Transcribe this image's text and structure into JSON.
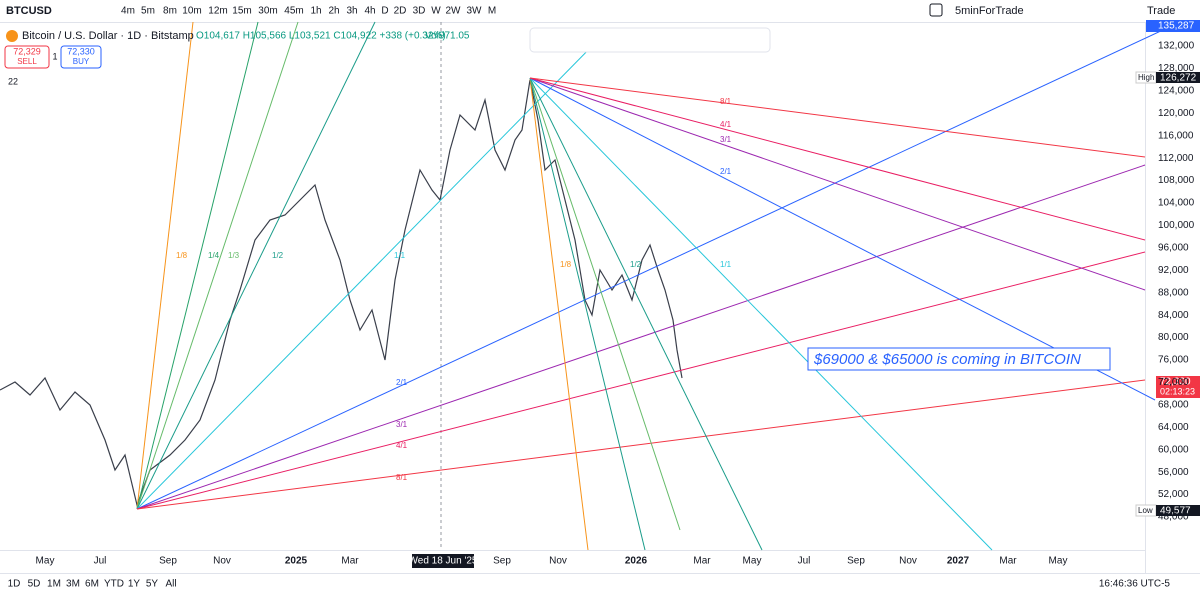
{
  "toolbar": {
    "symbol": "BTCUSD",
    "intervals": [
      "4m",
      "5m",
      "8m",
      "10m",
      "12m",
      "15m",
      "30m",
      "45m",
      "1h",
      "2h",
      "3h",
      "4h",
      "D",
      "2D",
      "3D",
      "W",
      "2W",
      "3W",
      "M"
    ],
    "layout_name": "5minForTrade",
    "trade": "Trade"
  },
  "legend": {
    "title": "Bitcoin / U.S. Dollar · 1D · Bitstamp",
    "ohlc": "O104,617 H105,566 L103,521 C104,922 +338 (+0.32%)",
    "volume": "Vol971.05",
    "sell_price": "72,329",
    "sell": "SELL",
    "spread": "1",
    "buy_price": "72,330",
    "buy": "BUY",
    "indicators_count": "22"
  },
  "price_axis": {
    "top_label": "135,287",
    "labels": [
      "132,000",
      "128,000",
      "124,000",
      "120,000",
      "116,000",
      "112,000",
      "108,000",
      "104,000",
      "100,000",
      "96,000",
      "92,000",
      "88,000",
      "84,000",
      "80,000",
      "76,000",
      "72,000",
      "68,000",
      "64,000",
      "60,000",
      "56,000",
      "52,000",
      "48,000"
    ],
    "high_label": "High",
    "high_value": "126,272",
    "current_price": "72,330",
    "countdown": "02:13:23",
    "low_label": "Low",
    "low_value": "49,577"
  },
  "time_axis": {
    "labels": [
      "May",
      "Jul",
      "Sep",
      "Nov",
      "2025",
      "Mar",
      "Sep",
      "Nov",
      "2026",
      "Mar",
      "May",
      "Jul",
      "Sep",
      "Nov",
      "2027",
      "Mar",
      "May"
    ],
    "crosshair": "Wed 18 Jun '25"
  },
  "annotation": "$69000 & $65000 is coming in BITCOIN",
  "lower_fan_labels": [
    "1/8",
    "1/4",
    "1/3",
    "1/2",
    "1/1",
    "2/1",
    "3/1",
    "4/1",
    "8/1"
  ],
  "upper_fan_labels": [
    "8/1",
    "4/1",
    "3/1",
    "2/1",
    "1/1",
    "1/2",
    "1/8"
  ],
  "bottom_bar": {
    "ranges": [
      "1D",
      "5D",
      "1M",
      "3M",
      "6M",
      "YTD",
      "1Y",
      "5Y",
      "All"
    ],
    "clock": "16:46:36 UTC-5"
  }
}
